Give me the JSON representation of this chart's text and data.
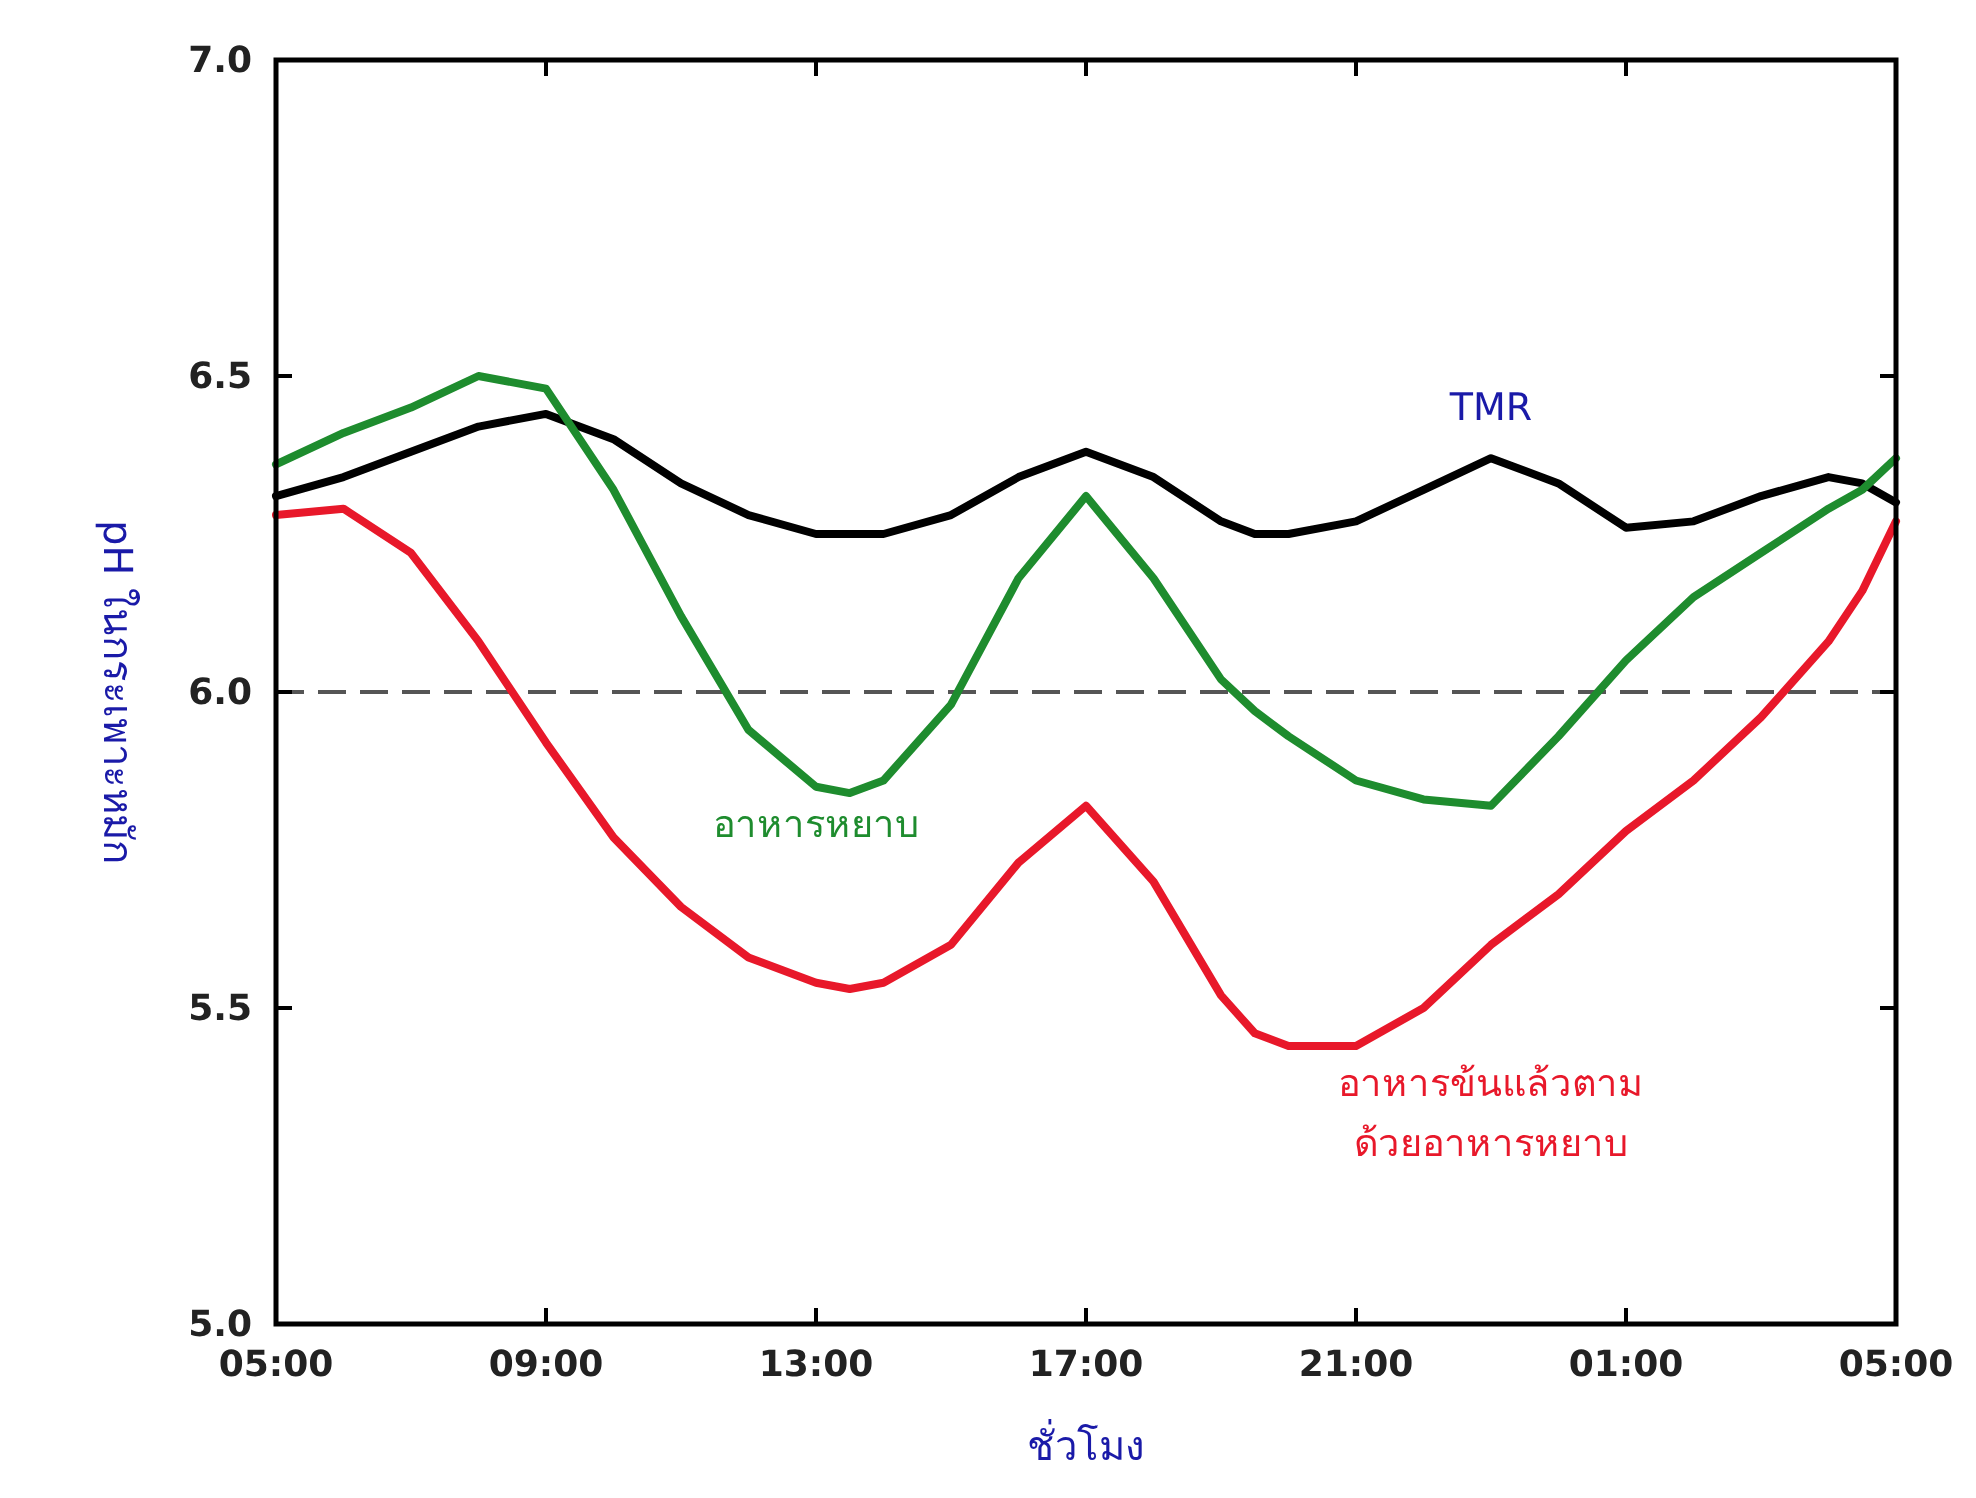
{
  "chart_data": {
    "type": "line",
    "xlabel": "ชั่วโมง",
    "ylabel": "pH ในกระเพาะหมัก",
    "xlim": [
      "2000-01-01T05:00",
      "2000-01-02T05:00"
    ],
    "ylim": [
      5.0,
      7.0
    ],
    "xticks": [
      {
        "value": "2000-01-01T05:00",
        "label": "05:00"
      },
      {
        "value": "2000-01-01T09:00",
        "label": "09:00"
      },
      {
        "value": "2000-01-01T13:00",
        "label": "13:00"
      },
      {
        "value": "2000-01-01T17:00",
        "label": "17:00"
      },
      {
        "value": "2000-01-01T21:00",
        "label": "21:00"
      },
      {
        "value": "2000-01-02T01:00",
        "label": "01:00"
      },
      {
        "value": "2000-01-02T05:00",
        "label": "05:00"
      }
    ],
    "yticks": [
      {
        "value": 5.0,
        "label": "5.0"
      },
      {
        "value": 5.5,
        "label": "5.5"
      },
      {
        "value": 6.0,
        "label": "6.0"
      },
      {
        "value": 6.5,
        "label": "6.5"
      },
      {
        "value": 7.0,
        "label": "7.0"
      }
    ],
    "x": [
      "2000-01-01T05:00",
      "2000-01-01T06:00",
      "2000-01-01T07:00",
      "2000-01-01T08:00",
      "2000-01-01T09:00",
      "2000-01-01T10:00",
      "2000-01-01T11:00",
      "2000-01-01T12:00",
      "2000-01-01T13:00",
      "2000-01-01T13:30",
      "2000-01-01T14:00",
      "2000-01-01T15:00",
      "2000-01-01T16:00",
      "2000-01-01T17:00",
      "2000-01-01T18:00",
      "2000-01-01T19:00",
      "2000-01-01T19:30",
      "2000-01-01T20:00",
      "2000-01-01T21:00",
      "2000-01-01T22:00",
      "2000-01-01T23:00",
      "2000-01-02T00:00",
      "2000-01-02T01:00",
      "2000-01-02T02:00",
      "2000-01-02T03:00",
      "2000-01-02T04:00",
      "2000-01-02T04:30",
      "2000-01-02T05:00"
    ],
    "grid": false,
    "marker": "none",
    "line_style": "solid",
    "ref_lines": [
      {
        "axis": "y",
        "value": 6.0,
        "color": "#555555",
        "line_style": "dashed"
      }
    ],
    "series": [
      {
        "name": "TMR",
        "color": "#000000",
        "values": [
          6.31,
          6.34,
          6.38,
          6.42,
          6.44,
          6.4,
          6.33,
          6.28,
          6.25,
          6.25,
          6.25,
          6.28,
          6.34,
          6.38,
          6.34,
          6.27,
          6.25,
          6.25,
          6.27,
          6.32,
          6.37,
          6.33,
          6.26,
          6.27,
          6.31,
          6.34,
          6.33,
          6.3
        ]
      },
      {
        "name": "อาหารหยาบ",
        "color": "#1e8c2e",
        "values": [
          6.36,
          6.41,
          6.45,
          6.5,
          6.48,
          6.32,
          6.12,
          5.94,
          5.85,
          5.84,
          5.86,
          5.98,
          6.18,
          6.31,
          6.18,
          6.02,
          5.97,
          5.93,
          5.86,
          5.83,
          5.82,
          5.93,
          6.05,
          6.15,
          6.22,
          6.29,
          6.32,
          6.37
        ]
      },
      {
        "name": "อาหารข้นแล้วตาม ด้วยอาหารหยาบ",
        "color": "#e8182a",
        "values": [
          6.28,
          6.29,
          6.22,
          6.08,
          5.92,
          5.77,
          5.66,
          5.58,
          5.54,
          5.53,
          5.54,
          5.6,
          5.73,
          5.82,
          5.7,
          5.52,
          5.46,
          5.44,
          5.44,
          5.5,
          5.6,
          5.68,
          5.78,
          5.86,
          5.96,
          6.08,
          6.16,
          6.27
        ]
      }
    ]
  }
}
